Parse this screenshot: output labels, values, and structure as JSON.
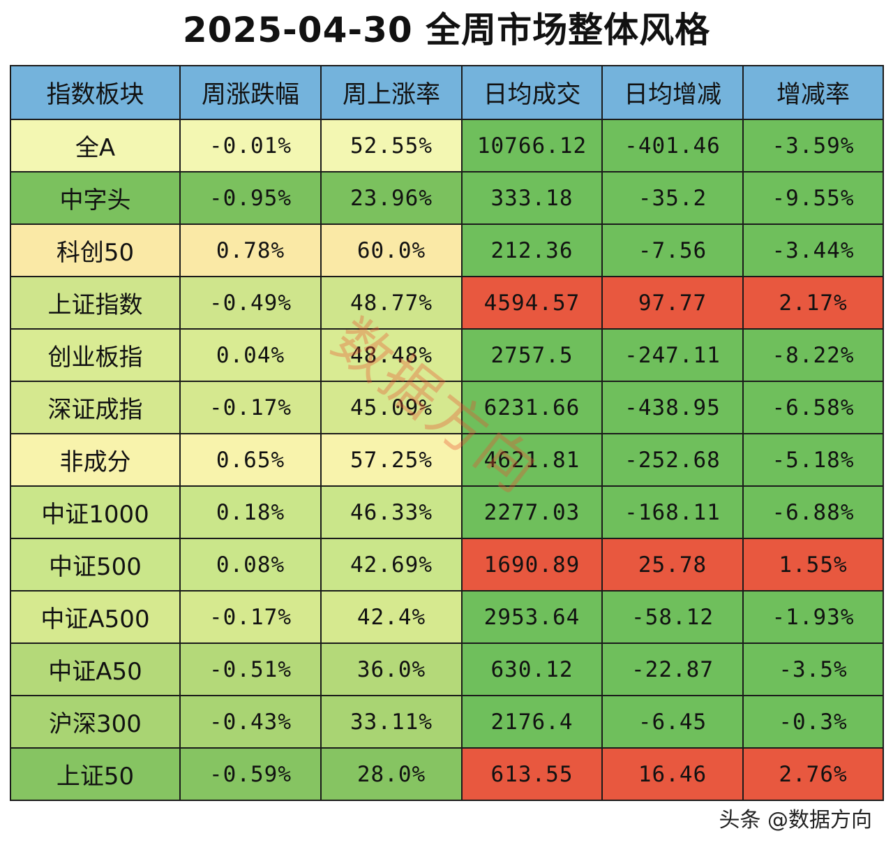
{
  "chart_data": {
    "type": "table",
    "title": "2025-04-30 全周市场整体风格",
    "columns": [
      "指数板块",
      "周涨跌幅",
      "周上涨率",
      "日均成交",
      "日均增减",
      "增减率"
    ],
    "rows": [
      [
        "全A",
        "-0.01%",
        "52.55%",
        "10766.12",
        "-401.46",
        "-3.59%"
      ],
      [
        "中字头",
        "-0.95%",
        "23.96%",
        "333.18",
        "-35.2",
        "-9.55%"
      ],
      [
        "科创50",
        "0.78%",
        "60.0%",
        "212.36",
        "-7.56",
        "-3.44%"
      ],
      [
        "上证指数",
        "-0.49%",
        "48.77%",
        "4594.57",
        "97.77",
        "2.17%"
      ],
      [
        "创业板指",
        "0.04%",
        "48.48%",
        "2757.5",
        "-247.11",
        "-8.22%"
      ],
      [
        "深证成指",
        "-0.17%",
        "45.09%",
        "6231.66",
        "-438.95",
        "-6.58%"
      ],
      [
        "非成分",
        "0.65%",
        "57.25%",
        "4621.81",
        "-252.68",
        "-5.18%"
      ],
      [
        "中证1000",
        "0.18%",
        "46.33%",
        "2277.03",
        "-168.11",
        "-6.88%"
      ],
      [
        "中证500",
        "0.08%",
        "42.69%",
        "1690.89",
        "25.78",
        "1.55%"
      ],
      [
        "中证A500",
        "-0.17%",
        "42.4%",
        "2953.64",
        "-58.12",
        "-1.93%"
      ],
      [
        "中证A50",
        "-0.51%",
        "36.0%",
        "630.12",
        "-22.87",
        "-3.5%"
      ],
      [
        "沪深300",
        "-0.43%",
        "33.11%",
        "2176.4",
        "-6.45",
        "-0.3%"
      ],
      [
        "上证50",
        "-0.59%",
        "28.0%",
        "613.55",
        "16.46",
        "2.76%"
      ]
    ],
    "row_colors_left": [
      "#f3f7b2",
      "#7bc15e",
      "#fae9a6",
      "#cfe58c",
      "#d9eb93",
      "#d5e88f",
      "#f8f3ac",
      "#cae68a",
      "#cae68a",
      "#d6e98f",
      "#b4d979",
      "#a9d473",
      "#86c462"
    ],
    "right_colors": [
      [
        "#6fbf5c",
        "#6fbf5c",
        "#6fbf5c"
      ],
      [
        "#6fbf5c",
        "#6fbf5c",
        "#6fbf5c"
      ],
      [
        "#6fbf5c",
        "#6fbf5c",
        "#6fbf5c"
      ],
      [
        "#e8583f",
        "#e8583f",
        "#e8583f"
      ],
      [
        "#6fbf5c",
        "#6fbf5c",
        "#6fbf5c"
      ],
      [
        "#6fbf5c",
        "#6fbf5c",
        "#6fbf5c"
      ],
      [
        "#6fbf5c",
        "#6fbf5c",
        "#6fbf5c"
      ],
      [
        "#6fbf5c",
        "#6fbf5c",
        "#6fbf5c"
      ],
      [
        "#e8583f",
        "#e8583f",
        "#e8583f"
      ],
      [
        "#6fbf5c",
        "#6fbf5c",
        "#6fbf5c"
      ],
      [
        "#6fbf5c",
        "#6fbf5c",
        "#6fbf5c"
      ],
      [
        "#6fbf5c",
        "#6fbf5c",
        "#6fbf5c"
      ],
      [
        "#e8583f",
        "#e8583f",
        "#e8583f"
      ]
    ],
    "header_color": "#74b3dc"
  },
  "watermark": "数据方向",
  "footer": "头条 @数据方向"
}
